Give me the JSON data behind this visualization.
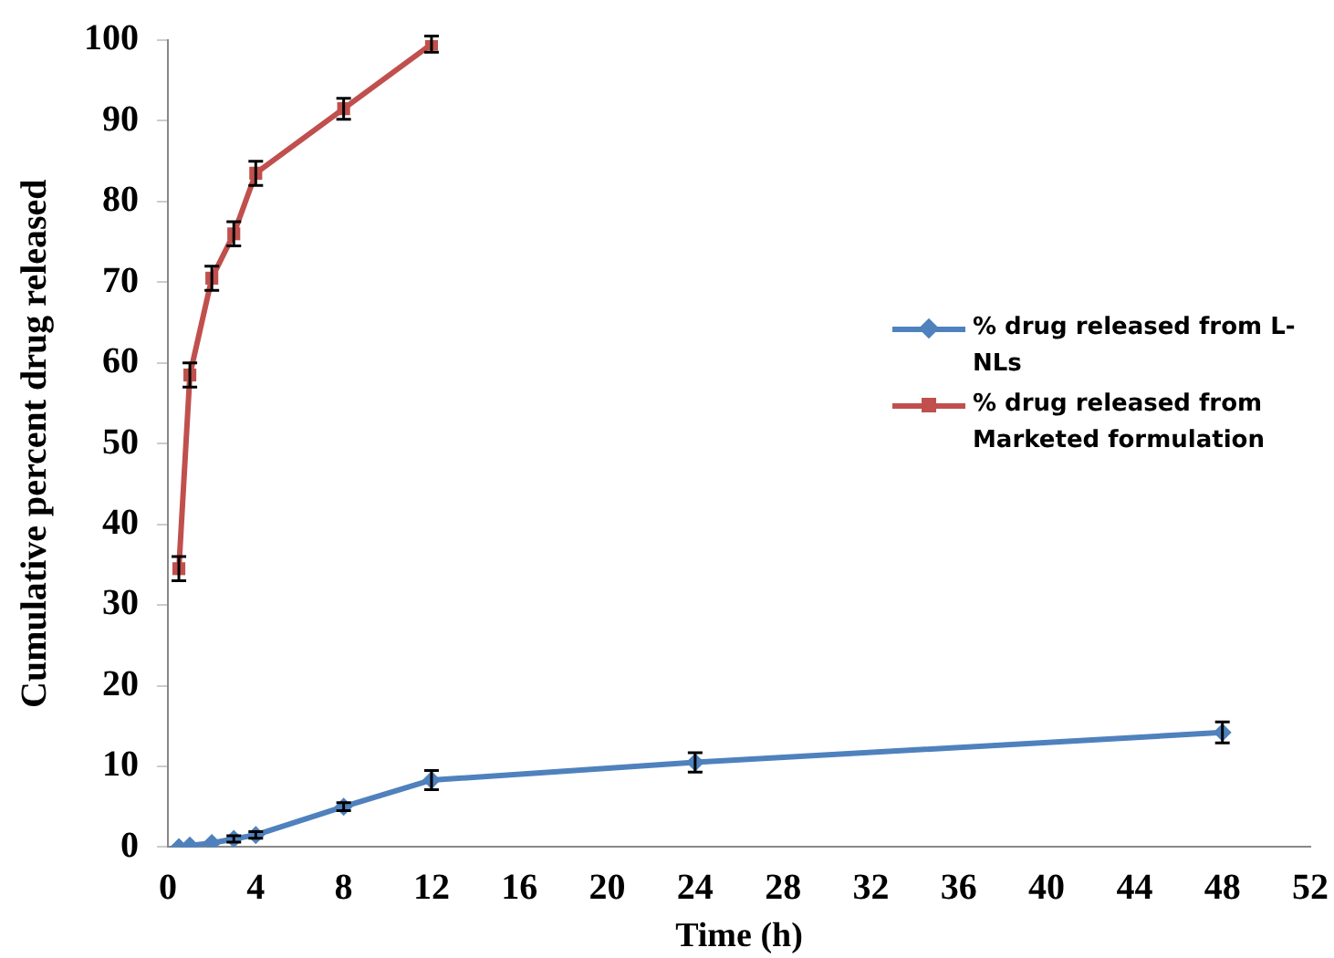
{
  "chart_data": {
    "type": "line",
    "xlabel": "Time (h)",
    "ylabel": "Cumulative percent drug released",
    "xlim": [
      0,
      52
    ],
    "xticks": [
      0,
      4,
      8,
      12,
      16,
      20,
      24,
      28,
      32,
      36,
      40,
      44,
      48,
      52
    ],
    "ylim": [
      0,
      100
    ],
    "yticks": [
      0,
      10,
      20,
      30,
      40,
      50,
      60,
      70,
      80,
      90,
      100
    ],
    "grid": false,
    "legend": "right",
    "line_style": "solid",
    "series": [
      {
        "name": "% drug released from L-NLs",
        "color": "#4f81bd",
        "marker": "diamond",
        "x": [
          0.5,
          1,
          2,
          3,
          4,
          8,
          12,
          24,
          48
        ],
        "values": [
          0,
          0.2,
          0.5,
          1,
          1.5,
          5,
          8.3,
          10.5,
          14.2
        ],
        "errors": [
          null,
          null,
          null,
          0.4,
          0.4,
          0.5,
          1.2,
          1.2,
          1.3
        ]
      },
      {
        "name": "% drug released from Marketed formulation",
        "color": "#c0504d",
        "marker": "square",
        "x": [
          0.5,
          1,
          2,
          3,
          4,
          8,
          12
        ],
        "values": [
          34.5,
          58.5,
          70.5,
          76,
          83.5,
          91.5,
          99.5
        ],
        "errors": [
          1.5,
          1.5,
          1.5,
          1.5,
          1.5,
          1.3,
          1
        ]
      }
    ]
  }
}
